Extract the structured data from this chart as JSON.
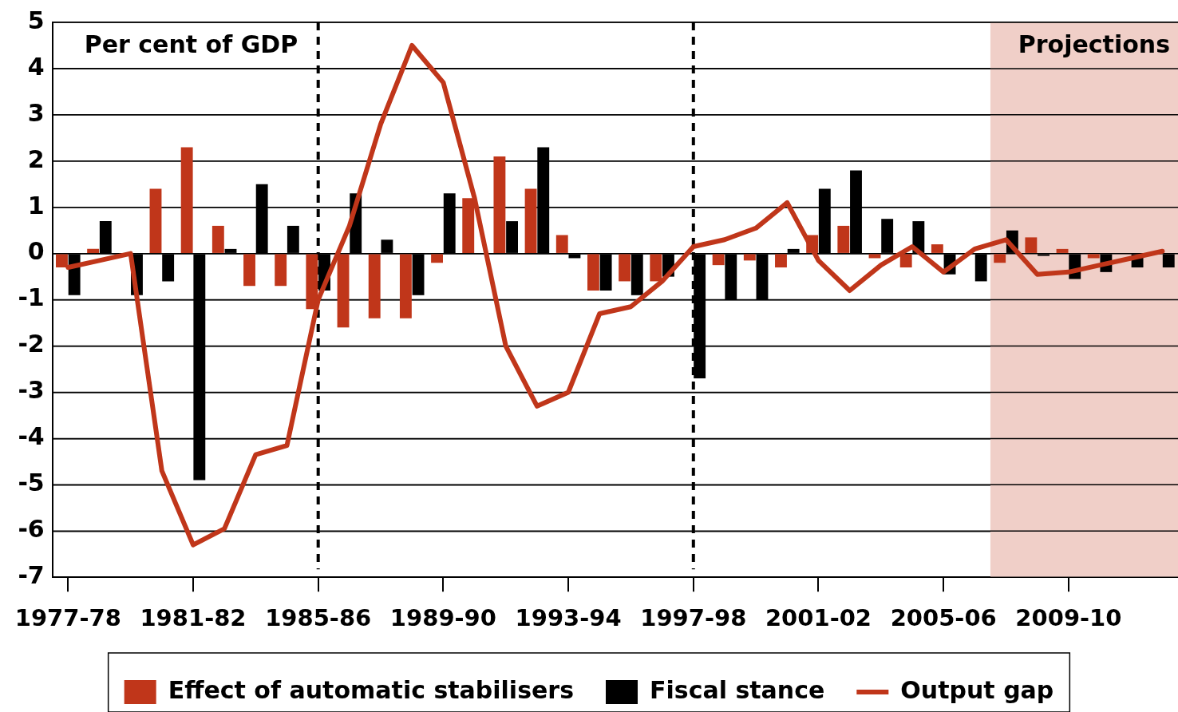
{
  "chart_data": {
    "type": "bar",
    "annotations": [
      "Per cent of GDP",
      "Projections"
    ],
    "categories": [
      "1977-78",
      null,
      null,
      null,
      "1981-82",
      null,
      null,
      null,
      "1985-86",
      null,
      null,
      null,
      "1989-90",
      null,
      null,
      null,
      "1993-94",
      null,
      null,
      null,
      "1997-98",
      null,
      null,
      null,
      "2001-02",
      null,
      null,
      null,
      "2005-06",
      null,
      null,
      null,
      "2009-10",
      null,
      null,
      null
    ],
    "series": [
      {
        "name": "Effect of automatic stabilisers",
        "color": "#c0361a",
        "values": [
          -0.3,
          0.1,
          0,
          1.4,
          2.3,
          0.6,
          -0.7,
          -0.7,
          -1.2,
          -1.6,
          -1.4,
          -1.4,
          -0.2,
          1.2,
          2.1,
          1.4,
          0.4,
          -0.8,
          -0.6,
          -0.6,
          0,
          -0.25,
          -0.15,
          -0.3,
          0.4,
          0.6,
          -0.1,
          -0.3,
          0.2,
          0,
          -0.2,
          0.35,
          0.1,
          -0.1,
          0,
          0
        ]
      },
      {
        "name": "Fiscal stance",
        "color": "#000000",
        "values": [
          -0.9,
          0.7,
          -0.9,
          -0.6,
          -4.9,
          0.1,
          1.5,
          0.6,
          -0.8,
          1.3,
          0.3,
          -0.9,
          1.3,
          0,
          0.7,
          2.3,
          -0.1,
          -0.8,
          -0.9,
          -0.5,
          -2.7,
          -1.0,
          -1.0,
          0.1,
          1.4,
          1.8,
          0.75,
          0.7,
          -0.45,
          -0.6,
          0.5,
          -0.05,
          -0.55,
          -0.4,
          -0.3,
          -0.3
        ]
      },
      {
        "name": "Output gap",
        "type": "line",
        "color": "#c0361a",
        "values": [
          -0.3,
          -0.15,
          0,
          -4.7,
          -6.3,
          -5.95,
          -4.35,
          -4.15,
          -1.0,
          0.6,
          2.8,
          4.5,
          3.7,
          1.2,
          -2.0,
          -3.3,
          -3.0,
          -1.3,
          -1.15,
          -0.6,
          0.15,
          0.3,
          0.55,
          1.1,
          -0.15,
          -0.8,
          -0.25,
          0.15,
          -0.4,
          0.1,
          0.3,
          -0.45,
          -0.4,
          -0.25,
          -0.1,
          0.05
        ]
      }
    ],
    "ylim": [
      -7,
      5
    ],
    "yticks": [
      -7,
      -6,
      -5,
      -4,
      -3,
      -2,
      -1,
      0,
      1,
      2,
      3,
      4,
      5
    ],
    "ref_lines": [
      {
        "axis": "x",
        "value": "1985-86",
        "color": "#000000",
        "line_style": "dashed"
      },
      {
        "axis": "x",
        "value": "1997-98",
        "color": "#000000",
        "line_style": "dashed"
      }
    ],
    "grid": "y",
    "legend": "bottom",
    "marker": "none",
    "line_style": "solid"
  }
}
